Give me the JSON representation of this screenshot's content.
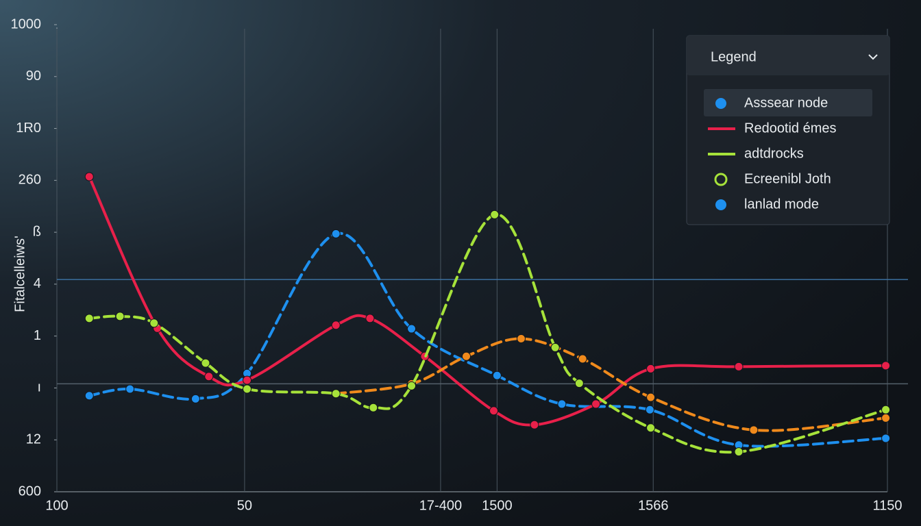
{
  "chart_data": {
    "type": "line",
    "ylabel": "Fitalcelleiws'",
    "xlim": [
      0,
      100
    ],
    "ylim": [
      0,
      9
    ],
    "xticks": [
      {
        "value": 0,
        "label": "100"
      },
      {
        "value": 22.6,
        "label": "50"
      },
      {
        "value": 46.2,
        "label": "17-400"
      },
      {
        "value": 53,
        "label": "1500"
      },
      {
        "value": 71.8,
        "label": "1566"
      },
      {
        "value": 100,
        "label": "1150"
      }
    ],
    "yticks": [
      {
        "value": 0,
        "label": "600"
      },
      {
        "value": 1,
        "label": "12"
      },
      {
        "value": 2,
        "label": "ı"
      },
      {
        "value": 3,
        "label": "1"
      },
      4,
      {
        "value": 5,
        "label": "ß"
      },
      {
        "value": 6,
        "label": "260"
      },
      {
        "value": 7,
        "label": "1R0"
      },
      {
        "value": 8,
        "label": "90"
      },
      {
        "value": 9,
        "label": "1000"
      }
    ],
    "reference_lines": [
      4.09,
      2.08
    ],
    "series": [
      {
        "color": "#1e90ef",
        "dash": true,
        "x": [
          3.9,
          8.8,
          16.7,
          22.9,
          33.6,
          42.7,
          53.0,
          60.8,
          71.4,
          82.1,
          99.8
        ],
        "values": [
          1.85,
          1.98,
          1.79,
          2.28,
          4.97,
          3.14,
          2.24,
          1.69,
          1.58,
          0.9,
          1.03
        ]
      },
      {
        "color": "#e8204a",
        "dash": false,
        "x": [
          3.9,
          12.1,
          18.3,
          22.9,
          33.6,
          37.7,
          44.3,
          52.6,
          57.5,
          64.9,
          71.5,
          82.1,
          99.8
        ],
        "values": [
          6.07,
          3.15,
          2.22,
          2.15,
          3.21,
          3.34,
          2.61,
          1.56,
          1.29,
          1.69,
          2.37,
          2.41,
          2.43
        ]
      },
      {
        "color": "#f08a1c",
        "dash": true,
        "x": [
          33.6,
          42.7,
          49.3,
          55.9,
          63.3,
          71.5,
          83.9,
          99.8
        ],
        "values": [
          1.89,
          2.08,
          2.61,
          2.95,
          2.56,
          1.82,
          1.19,
          1.42
        ]
      },
      {
        "color": "#a6e23a",
        "dash": true,
        "x": [
          3.9,
          7.6,
          11.7,
          17.9,
          22.9,
          33.6,
          38.1,
          42.7,
          52.7,
          60.0,
          62.9,
          71.5,
          82.1,
          99.8
        ],
        "values": [
          3.34,
          3.38,
          3.25,
          2.48,
          1.98,
          1.89,
          1.62,
          2.04,
          5.34,
          2.78,
          2.09,
          1.23,
          0.77,
          1.58
        ]
      }
    ],
    "legend": {
      "title": "Legend",
      "items": [
        {
          "label": "Asssear node",
          "marker": "dot",
          "color": "#1e90ef"
        },
        {
          "label": "Redootid émes",
          "marker": "line",
          "color": "#e8204a"
        },
        {
          "label": "adtdrocks",
          "marker": "line",
          "color": "#a6e23a"
        },
        {
          "label": "Ecreenibl Joth",
          "marker": "ring",
          "color": "#a6e23a"
        },
        {
          "label": "lanlad mode",
          "marker": "dot",
          "color": "#1e90ef"
        }
      ]
    }
  }
}
